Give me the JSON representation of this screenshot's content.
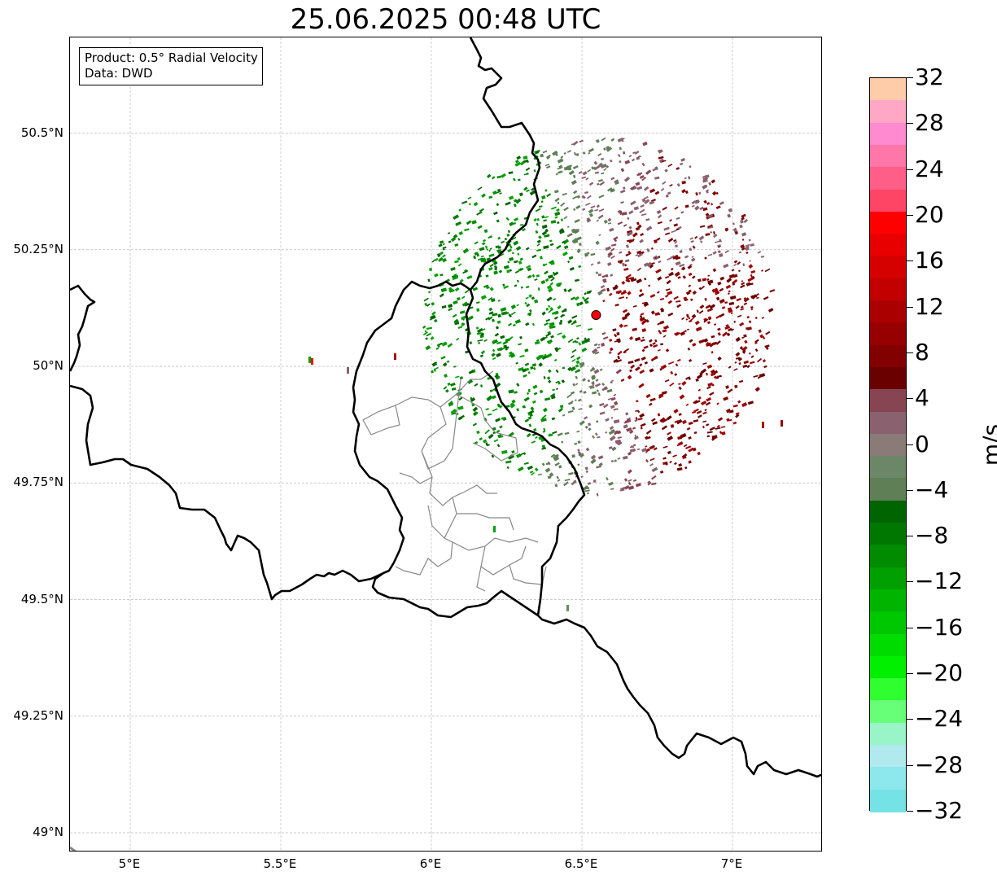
{
  "title": "25.06.2025 00:48 UTC",
  "info": {
    "product": "Product: 0.5° Radial Velocity",
    "data": "Data: DWD"
  },
  "axes": {
    "lat_labels": [
      "50.5°N",
      "50.25°N",
      "50°N",
      "49.75°N",
      "49.5°N",
      "49.25°N",
      "49°N"
    ],
    "lat_values": [
      50.5,
      50.25,
      50.0,
      49.75,
      49.5,
      49.25,
      49.0
    ],
    "lon_labels": [
      "5°E",
      "5.5°E",
      "6°E",
      "6.5°E",
      "7°E"
    ],
    "lon_values": [
      5.0,
      5.5,
      6.0,
      6.5,
      7.0
    ],
    "lon_range": [
      4.8,
      7.3
    ],
    "lat_range": [
      48.95,
      50.7
    ]
  },
  "radar_site": {
    "lon": 6.547,
    "lat": 50.11,
    "color": "#ff0000"
  },
  "colorbar": {
    "unit": "m/s",
    "range": [
      -32,
      32
    ],
    "tick_labels": [
      "32",
      "28",
      "24",
      "20",
      "16",
      "12",
      "8",
      "4",
      "0",
      "−4",
      "−8",
      "−12",
      "−16",
      "−20",
      "−24",
      "−28",
      "−32"
    ],
    "tick_values": [
      32,
      28,
      24,
      20,
      16,
      12,
      8,
      4,
      0,
      -4,
      -8,
      -12,
      -16,
      -20,
      -24,
      -28,
      -32
    ],
    "colors_top_to_bottom": [
      "#ffccaa",
      "#ffa8c5",
      "#ff8ad0",
      "#ff77a8",
      "#ff5e88",
      "#ff4566",
      "#ff0000",
      "#e80000",
      "#d50000",
      "#c30000",
      "#ab0000",
      "#960000",
      "#820000",
      "#6a0000",
      "#874554",
      "#8a616f",
      "#8a7a78",
      "#6c8767",
      "#5f7f57",
      "#006400",
      "#007800",
      "#008b00",
      "#00a000",
      "#00b400",
      "#00c800",
      "#00dc00",
      "#00f000",
      "#2fff2f",
      "#66ff77",
      "#99f4c8",
      "#b0eaee",
      "#8de8ee",
      "#75e3e6"
    ]
  },
  "velocity_classes": {
    "outbound_colors": [
      "#a00000",
      "#820000",
      "#6a0000",
      "#8a616f",
      "#874554"
    ],
    "inbound_colors": [
      "#009000",
      "#00a000",
      "#008000",
      "#006400",
      "#5f7f57"
    ]
  }
}
